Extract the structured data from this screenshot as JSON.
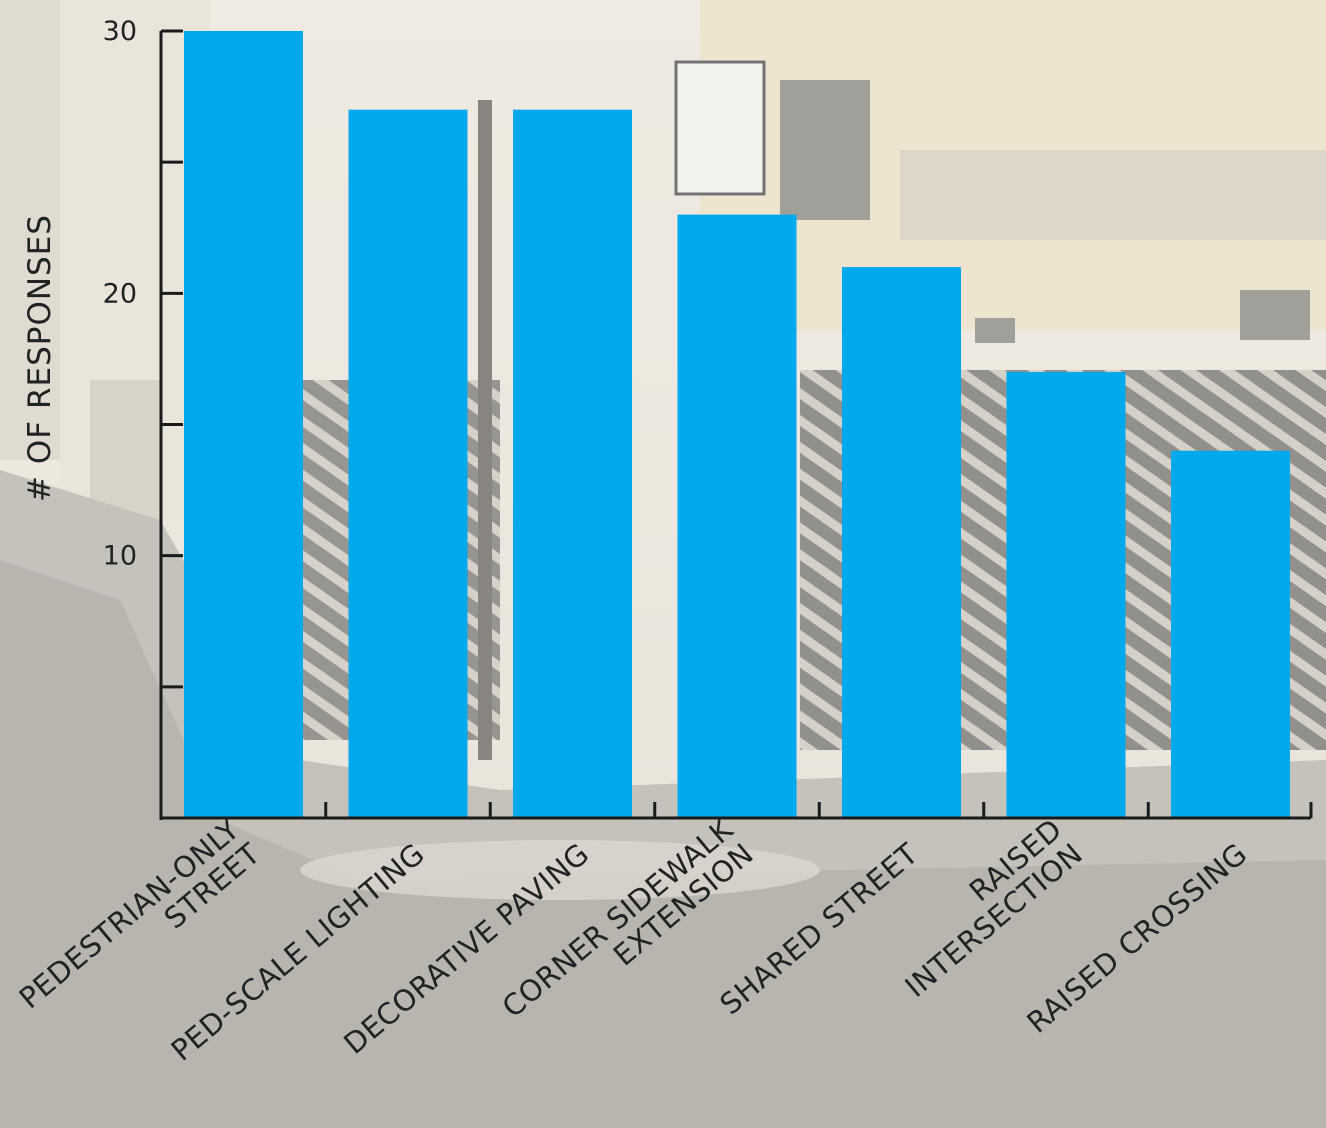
{
  "chart_data": {
    "type": "bar",
    "categories": [
      "PEDESTRIAN-ONLY STREET",
      "PED-SCALE LIGHTING",
      "DECORATIVE PAVING",
      "CORNER SIDEWALK EXTENSION",
      "SHARED STREET",
      "RAISED INTERSECTION",
      "RAISED CROSSING"
    ],
    "category_label_lines": [
      [
        "PEDESTRIAN-ONLY",
        "STREET"
      ],
      [
        "PED-SCALE LIGHTING"
      ],
      [
        "DECORATIVE PAVING"
      ],
      [
        "CORNER SIDEWALK",
        "EXTENSION"
      ],
      [
        "SHARED STREET"
      ],
      [
        "RAISED",
        "INTERSECTION"
      ],
      [
        "RAISED CROSSING"
      ]
    ],
    "values": [
      30,
      27,
      27,
      23,
      21,
      17,
      14
    ],
    "title": "",
    "xlabel": "",
    "ylabel": "# OF RESPONSES",
    "ylim": [
      0,
      30
    ],
    "yticks": [
      10,
      20,
      30
    ],
    "minor_yticks": [
      5,
      15,
      25
    ],
    "grid": false,
    "bar_color": "#00a8ec",
    "axis_color": "#1a1a1a"
  }
}
